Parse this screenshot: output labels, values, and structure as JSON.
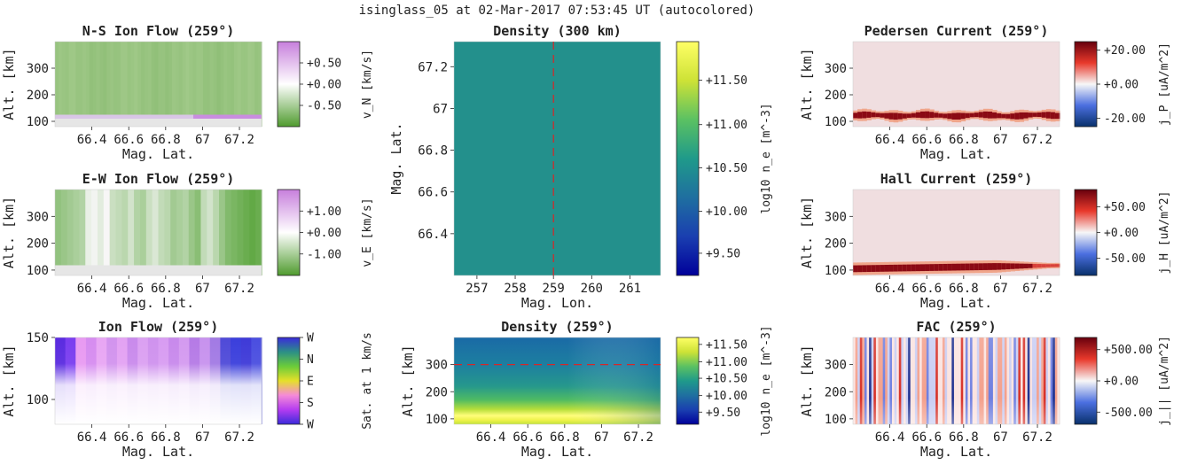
{
  "suptitle": "isinglass_05 at 02-Mar-2017 07:53:45 UT (autocolored)",
  "colors": {
    "text": "#222222",
    "green_flow": "#8fbe6c",
    "ground_fill": "#e6e6e6",
    "density_teal": "#23908c",
    "pale_pink": "#f0dee0",
    "dashed_red": "#d62728"
  },
  "panels": {
    "ns": {
      "title": "N-S Ion Flow (259°)",
      "xlabel": "Mag. Lat.",
      "ylabel": "Alt. [km]",
      "cb_label": "v_N [km/s]"
    },
    "ew": {
      "title": "E-W Ion Flow (259°)",
      "xlabel": "Mag. Lat.",
      "ylabel": "Alt. [km]",
      "cb_label": "v_E [km/s]"
    },
    "ionflow": {
      "title": "Ion Flow (259°)",
      "xlabel": "Mag. Lat.",
      "ylabel": "Alt. [km]",
      "cb_label": "Sat. at 1 km/s"
    },
    "dens300": {
      "title": "Density (300 km)",
      "xlabel": "Mag. Lon.",
      "ylabel": "Mag. Lat.",
      "cb_label": "log10 n_e [m^-3]"
    },
    "dens259": {
      "title": "Density (259°)",
      "xlabel": "Mag. Lat.",
      "ylabel": "Alt. [km]",
      "cb_label": "log10 n_e [m^-3]"
    },
    "ped": {
      "title": "Pedersen Current (259°)",
      "xlabel": "Mag. Lat.",
      "ylabel": "Alt. [km]",
      "cb_label": "j_P [uA/m^2]"
    },
    "hall": {
      "title": "Hall Current (259°)",
      "xlabel": "Mag. Lat.",
      "ylabel": "Alt. [km]",
      "cb_label": "j_H [uA/m^2]"
    },
    "fac": {
      "title": "FAC (259°)",
      "xlabel": "Mag. Lat.",
      "ylabel": "Alt. [km]",
      "cb_label": "j_|| [uA/m^2]"
    }
  },
  "chart_data": [
    {
      "id": "ns",
      "type": "heatmap",
      "title": "N-S Ion Flow (259°)",
      "xlabel": "Mag. Lat.",
      "ylabel": "Alt. [km]",
      "xlim": [
        66.2,
        67.32
      ],
      "ylim": [
        80,
        400
      ],
      "xticks": [
        66.4,
        66.6,
        66.8,
        67,
        67.2
      ],
      "xticklabels": [
        "66.4",
        "66.6",
        "66.8",
        "67",
        "67.2"
      ],
      "yticks": [
        100,
        200,
        300
      ],
      "yticklabels": [
        "100",
        "200",
        "300"
      ],
      "colorbar": {
        "label": "v_N [km/s]",
        "ticks": [
          "+0.50",
          "+0.00",
          "-0.50"
        ],
        "tick_fracs": [
          0.25,
          0.5,
          0.75
        ],
        "stops": [
          "#c77fdc",
          "#ffffff",
          "#4f9b2e"
        ]
      },
      "description": "uniform slightly negative northward flow (light green) above ~120 km; thin band near 100 km"
    },
    {
      "id": "ew",
      "type": "heatmap",
      "title": "E-W Ion Flow (259°)",
      "xlabel": "Mag. Lat.",
      "ylabel": "Alt. [km]",
      "xlim": [
        66.2,
        67.32
      ],
      "ylim": [
        80,
        400
      ],
      "xticks": [
        66.4,
        66.6,
        66.8,
        67,
        67.2
      ],
      "xticklabels": [
        "66.4",
        "66.6",
        "66.8",
        "67",
        "67.2"
      ],
      "yticks": [
        100,
        200,
        300
      ],
      "yticklabels": [
        "100",
        "200",
        "300"
      ],
      "colorbar": {
        "label": "v_E [km/s]",
        "ticks": [
          "+1.00",
          "+0.00",
          "-1.00"
        ],
        "tick_fracs": [
          0.25,
          0.5,
          0.75
        ],
        "stops": [
          "#c77fdc",
          "#ffffff",
          "#4f9b2e"
        ]
      },
      "description": "vertical stripes of westward flow, strongest near 66.2 and 67.2 Mag. Lat."
    },
    {
      "id": "ionflow",
      "type": "heatmap",
      "title": "Ion Flow (259°)",
      "xlabel": "Mag. Lat.",
      "ylabel": "Alt. [km]",
      "xlim": [
        66.2,
        67.32
      ],
      "ylim": [
        80,
        150
      ],
      "xticks": [
        66.4,
        66.6,
        66.8,
        67,
        67.2
      ],
      "xticklabels": [
        "66.4",
        "66.6",
        "66.8",
        "67",
        "67.2"
      ],
      "yticks": [
        100,
        150
      ],
      "yticklabels": [
        "100",
        "150"
      ],
      "colorbar": {
        "label": "Sat. at 1 km/s",
        "ticks": [
          "W",
          "N",
          "E",
          "S",
          "W"
        ],
        "tick_fracs": [
          0.0,
          0.25,
          0.5,
          0.75,
          1.0
        ],
        "stops": [
          "#3a2bdb",
          "#2c8f86",
          "#6bcc3a",
          "#e6e02a",
          "#f58ad8",
          "#b43cf0",
          "#3a2bdb"
        ]
      },
      "description": "purple/magenta direction colors above ~125 km fading to white below, blue at edges"
    },
    {
      "id": "dens300",
      "type": "heatmap",
      "title": "Density (300 km)",
      "xlabel": "Mag. Lon.",
      "ylabel": "Mag. Lat.",
      "xlim": [
        256.4,
        261.8
      ],
      "ylim": [
        66.2,
        67.32
      ],
      "xticks": [
        257,
        258,
        259,
        260,
        261
      ],
      "xticklabels": [
        "257",
        "258",
        "259",
        "260",
        "261"
      ],
      "yticks": [
        66.4,
        66.6,
        66.8,
        67,
        67.2
      ],
      "yticklabels": [
        "66.4",
        "66.6",
        "66.8",
        "67",
        "67.2"
      ],
      "colorbar": {
        "label": "log10 n_e [m^-3]",
        "ticks": [
          "+11.50",
          "+11.00",
          "+10.50",
          "+10.00",
          "+9.50"
        ],
        "tick_fracs": [
          0.165,
          0.355,
          0.54,
          0.725,
          0.905
        ],
        "stops": [
          "#ffff66",
          "#cde236",
          "#5bc162",
          "#1f9a8a",
          "#1f6fa0",
          "#1a3fb0",
          "#00009a"
        ]
      },
      "values": "uniform ~10.3",
      "dashed_line": {
        "x": 259
      }
    },
    {
      "id": "dens259",
      "type": "heatmap",
      "title": "Density (259°)",
      "xlabel": "Mag. Lat.",
      "ylabel": "Alt. [km]",
      "xlim": [
        66.2,
        67.32
      ],
      "ylim": [
        80,
        400
      ],
      "xticks": [
        66.4,
        66.6,
        66.8,
        67,
        67.2
      ],
      "xticklabels": [
        "66.4",
        "66.6",
        "66.8",
        "67",
        "67.2"
      ],
      "yticks": [
        100,
        200,
        300
      ],
      "yticklabels": [
        "100",
        "200",
        "300"
      ],
      "colorbar": {
        "label": "log10 n_e [m^-3]",
        "ticks": [
          "+11.50",
          "+11.00",
          "+10.50",
          "+10.00",
          "+9.50"
        ],
        "tick_fracs": [
          0.08,
          0.28,
          0.47,
          0.67,
          0.86
        ],
        "stops": [
          "#ffff66",
          "#cde236",
          "#5bc162",
          "#1f9a8a",
          "#1f6fa0",
          "#1a3fb0",
          "#00009a"
        ]
      },
      "description": "bright (~11.5) E-region layer near 100-150 km, teal/blue above",
      "dashed_line": {
        "y": 300
      }
    },
    {
      "id": "ped",
      "type": "heatmap",
      "title": "Pedersen Current (259°)",
      "xlabel": "Mag. Lat.",
      "ylabel": "Alt. [km]",
      "xlim": [
        66.2,
        67.32
      ],
      "ylim": [
        80,
        400
      ],
      "xticks": [
        66.4,
        66.6,
        66.8,
        67,
        67.2
      ],
      "xticklabels": [
        "66.4",
        "66.6",
        "66.8",
        "67",
        "67.2"
      ],
      "yticks": [
        100,
        200,
        300
      ],
      "yticklabels": [
        "100",
        "200",
        "300"
      ],
      "colorbar": {
        "label": "j_P [uA/m^2]",
        "ticks": [
          "+20.00",
          "+0.00",
          "-20.00"
        ],
        "tick_fracs": [
          0.1,
          0.5,
          0.9
        ],
        "stops": [
          "#67000d",
          "#e8392b",
          "#f7f7f7",
          "#4b6fe0",
          "#08306b"
        ]
      },
      "description": "positive current layer centered ~120 km"
    },
    {
      "id": "hall",
      "type": "heatmap",
      "title": "Hall Current (259°)",
      "xlabel": "Mag. Lat.",
      "ylabel": "Alt. [km]",
      "xlim": [
        66.2,
        67.32
      ],
      "ylim": [
        80,
        400
      ],
      "xticks": [
        66.4,
        66.6,
        66.8,
        67,
        67.2
      ],
      "xticklabels": [
        "66.4",
        "66.6",
        "66.8",
        "67",
        "67.2"
      ],
      "yticks": [
        100,
        200,
        300
      ],
      "yticklabels": [
        "100",
        "200",
        "300"
      ],
      "colorbar": {
        "label": "j_H [uA/m^2]",
        "ticks": [
          "+50.00",
          "+0.00",
          "-50.00"
        ],
        "tick_fracs": [
          0.2,
          0.5,
          0.8
        ],
        "stops": [
          "#67000d",
          "#e8392b",
          "#f7f7f7",
          "#4b6fe0",
          "#08306b"
        ]
      },
      "description": "strong positive current layer centered ~105 km"
    },
    {
      "id": "fac",
      "type": "heatmap",
      "title": "FAC (259°)",
      "xlabel": "Mag. Lat.",
      "ylabel": "Alt. [km]",
      "xlim": [
        66.2,
        67.32
      ],
      "ylim": [
        80,
        400
      ],
      "xticks": [
        66.4,
        66.6,
        66.8,
        67,
        67.2
      ],
      "xticklabels": [
        "66.4",
        "66.6",
        "66.8",
        "67",
        "67.2"
      ],
      "yticks": [
        100,
        200,
        300
      ],
      "yticklabels": [
        "100",
        "200",
        "300"
      ],
      "colorbar": {
        "label": "j_|| [uA/m^2]",
        "ticks": [
          "+500.00",
          "+0.00",
          "-500.00"
        ],
        "tick_fracs": [
          0.14,
          0.5,
          0.86
        ],
        "stops": [
          "#67000d",
          "#e8392b",
          "#f7f7f7",
          "#4b6fe0",
          "#08306b"
        ]
      },
      "description": "vertical stripes of alternating sign field-aligned current"
    }
  ]
}
